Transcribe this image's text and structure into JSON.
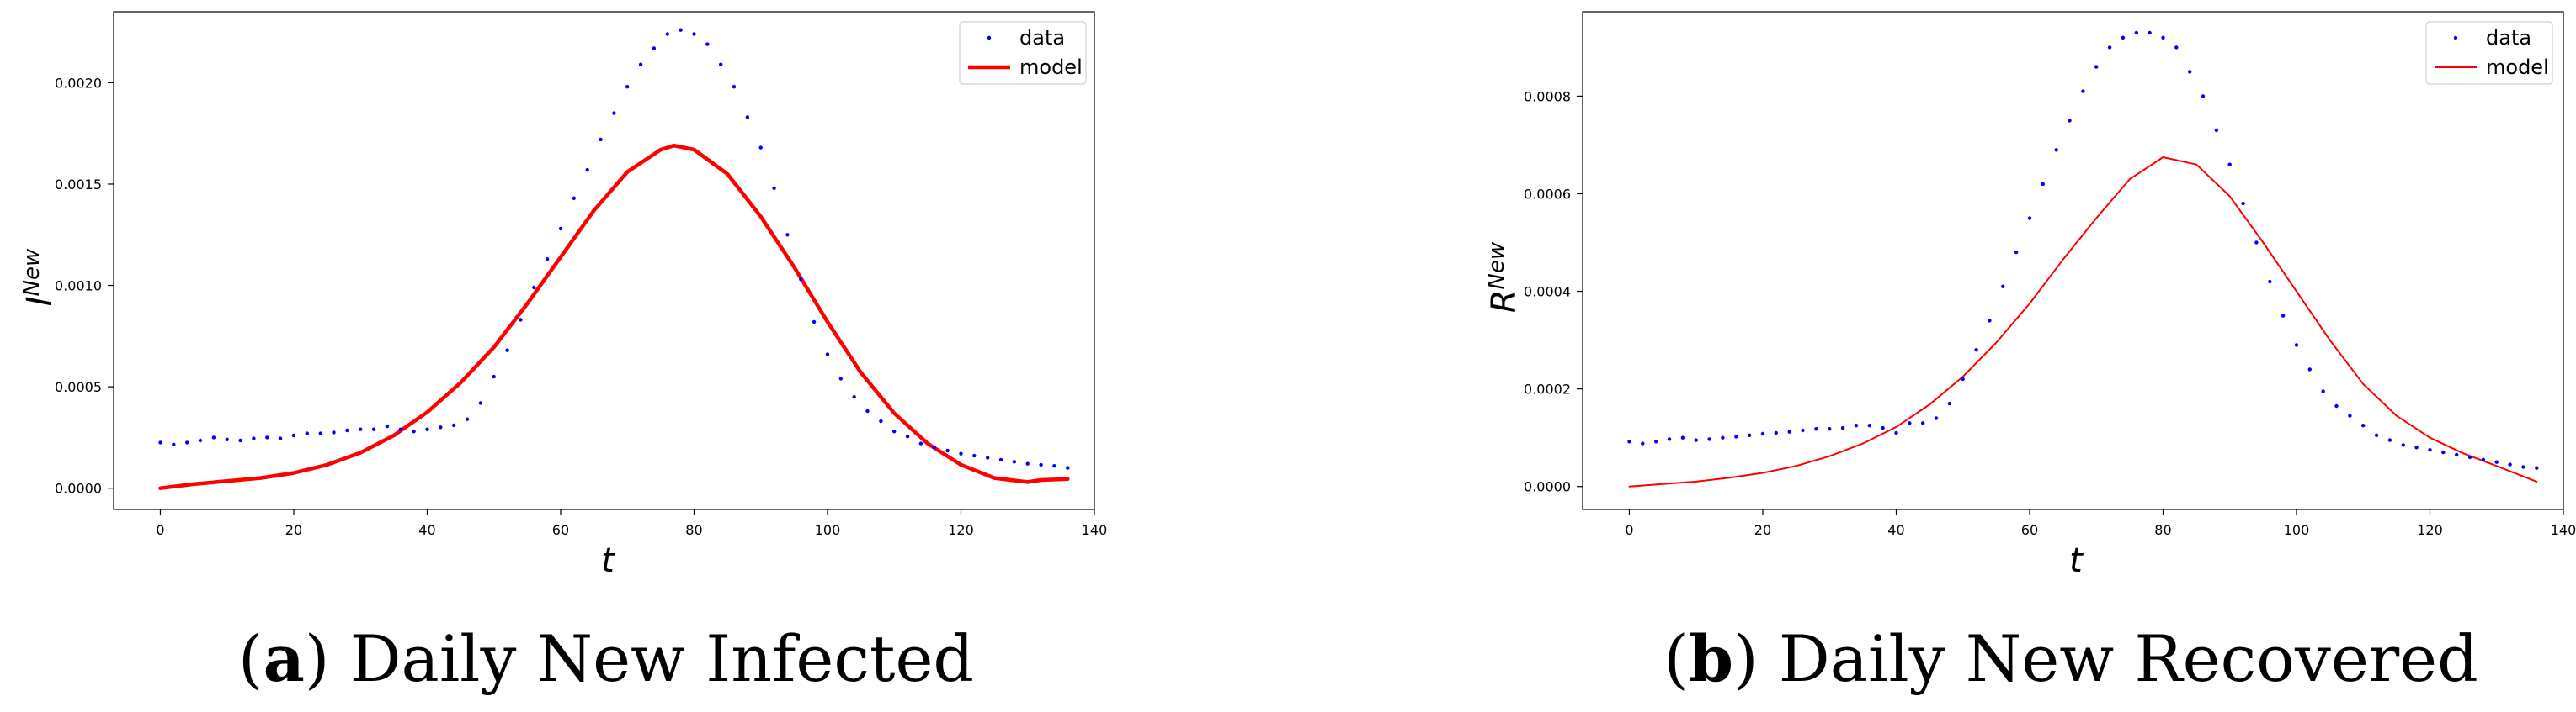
{
  "chart_data": [
    {
      "type": "scatter",
      "panel_letter": "a",
      "caption": "Daily New Infected",
      "xlabel": "t",
      "ylabel_base": "I",
      "ylabel_sup": "New",
      "xlim": [
        -7,
        140
      ],
      "ylim": [
        -0.000105,
        0.00235
      ],
      "x_ticks": [
        0,
        20,
        40,
        60,
        80,
        100,
        120,
        140
      ],
      "y_ticks": [
        0.0,
        0.0005,
        0.001,
        0.0015,
        0.002
      ],
      "y_tick_labels": [
        "0.0000",
        "0.0005",
        "0.0010",
        "0.0015",
        "0.0020"
      ],
      "legend": {
        "position": "upper-right",
        "entries": [
          "data",
          "model"
        ]
      },
      "grid": false,
      "series": [
        {
          "name": "data",
          "kind": "dots",
          "color": "#0000ff",
          "x": [
            0,
            2,
            4,
            6,
            8,
            10,
            12,
            14,
            16,
            18,
            20,
            22,
            24,
            26,
            28,
            30,
            32,
            34,
            36,
            38,
            40,
            42,
            44,
            46,
            48,
            50,
            52,
            54,
            56,
            58,
            60,
            62,
            64,
            66,
            68,
            70,
            72,
            74,
            76,
            78,
            80,
            82,
            84,
            86,
            88,
            90,
            92,
            94,
            96,
            98,
            100,
            102,
            104,
            106,
            108,
            110,
            112,
            114,
            116,
            118,
            120,
            122,
            124,
            126,
            128,
            130,
            132,
            134,
            136
          ],
          "y": [
            0.000225,
            0.000215,
            0.000225,
            0.000235,
            0.00025,
            0.00024,
            0.000235,
            0.000245,
            0.00025,
            0.000245,
            0.00026,
            0.00027,
            0.00027,
            0.000275,
            0.000285,
            0.00029,
            0.00029,
            0.000305,
            0.00029,
            0.00028,
            0.00029,
            0.0003,
            0.00031,
            0.00034,
            0.00042,
            0.00055,
            0.00068,
            0.00083,
            0.00099,
            0.00113,
            0.00128,
            0.00143,
            0.00157,
            0.00172,
            0.00185,
            0.00198,
            0.00209,
            0.00217,
            0.00224,
            0.00226,
            0.00224,
            0.00219,
            0.00209,
            0.00198,
            0.00183,
            0.00168,
            0.00148,
            0.00125,
            0.00103,
            0.00082,
            0.00066,
            0.00054,
            0.00045,
            0.00038,
            0.00033,
            0.00028,
            0.000255,
            0.00022,
            0.0002,
            0.000185,
            0.00017,
            0.00016,
            0.00015,
            0.00014,
            0.00013,
            0.00012,
            0.000115,
            0.00011,
            0.0001
          ]
        },
        {
          "name": "model",
          "kind": "line",
          "color": "#ff0000",
          "x": [
            0,
            5,
            10,
            15,
            20,
            25,
            30,
            35,
            40,
            45,
            50,
            55,
            60,
            65,
            70,
            75,
            77,
            80,
            85,
            90,
            95,
            100,
            105,
            110,
            115,
            120,
            125,
            130,
            132,
            136
          ],
          "y": [
            0.0,
            2e-05,
            3.5e-05,
            5e-05,
            7.5e-05,
            0.000115,
            0.000175,
            0.00026,
            0.000375,
            0.00052,
            0.000695,
            0.00091,
            0.00114,
            0.00137,
            0.00156,
            0.00167,
            0.00169,
            0.00167,
            0.00155,
            0.00134,
            0.00109,
            0.00082,
            0.00057,
            0.00037,
            0.00022,
            0.000115,
            5e-05,
            3e-05,
            4e-05,
            4.5e-05
          ]
        }
      ]
    },
    {
      "type": "scatter",
      "panel_letter": "b",
      "caption": "Daily New Recovered",
      "xlabel": "t",
      "ylabel_base": "R",
      "ylabel_sup": "New",
      "xlim": [
        -7,
        140
      ],
      "ylim": [
        -4.7e-05,
        0.000973
      ],
      "x_ticks": [
        0,
        20,
        40,
        60,
        80,
        100,
        120,
        140
      ],
      "y_ticks": [
        0.0,
        0.0002,
        0.0004,
        0.0006,
        0.0008
      ],
      "y_tick_labels": [
        "0.0000",
        "0.0002",
        "0.0004",
        "0.0006",
        "0.0008"
      ],
      "legend": {
        "position": "upper-right",
        "entries": [
          "data",
          "model"
        ]
      },
      "grid": false,
      "series": [
        {
          "name": "data",
          "kind": "dots",
          "color": "#0000ff",
          "x": [
            0,
            2,
            4,
            6,
            8,
            10,
            12,
            14,
            16,
            18,
            20,
            22,
            24,
            26,
            28,
            30,
            32,
            34,
            36,
            38,
            40,
            42,
            44,
            46,
            48,
            50,
            52,
            54,
            56,
            58,
            60,
            62,
            64,
            66,
            68,
            70,
            72,
            74,
            76,
            78,
            80,
            82,
            84,
            86,
            88,
            90,
            92,
            94,
            96,
            98,
            100,
            102,
            104,
            106,
            108,
            110,
            112,
            114,
            116,
            118,
            120,
            122,
            124,
            126,
            128,
            130,
            132,
            134,
            136
          ],
          "y": [
            9.2e-05,
            8.8e-05,
            9.2e-05,
            9.7e-05,
            0.0001,
            9.5e-05,
            9.7e-05,
            0.0001,
            0.000102,
            0.000105,
            0.000108,
            0.00011,
            0.000112,
            0.000115,
            0.000118,
            0.000118,
            0.00012,
            0.000125,
            0.000125,
            0.00012,
            0.00011,
            0.00013,
            0.00013,
            0.00014,
            0.00017,
            0.00022,
            0.00028,
            0.00034,
            0.00041,
            0.00048,
            0.00055,
            0.00062,
            0.00069,
            0.00075,
            0.00081,
            0.00086,
            0.0009,
            0.00092,
            0.00093,
            0.00093,
            0.00092,
            0.0009,
            0.00085,
            0.0008,
            0.00073,
            0.00066,
            0.00058,
            0.0005,
            0.00042,
            0.00035,
            0.00029,
            0.00024,
            0.000195,
            0.000165,
            0.000145,
            0.000125,
            0.000105,
            9.5e-05,
            8.5e-05,
            8e-05,
            7.5e-05,
            7e-05,
            6.5e-05,
            6e-05,
            5.5e-05,
            5e-05,
            4.5e-05,
            4e-05,
            3.8e-05
          ]
        },
        {
          "name": "model",
          "kind": "line",
          "color": "#ff0000",
          "x": [
            0,
            5,
            10,
            15,
            20,
            25,
            30,
            35,
            40,
            45,
            50,
            55,
            60,
            65,
            70,
            75,
            80,
            85,
            90,
            95,
            100,
            105,
            110,
            115,
            120,
            125,
            130,
            136
          ],
          "y": [
            0.0,
            5e-06,
            1e-05,
            1.8e-05,
            2.8e-05,
            4.2e-05,
            6.2e-05,
            8.8e-05,
            0.000122,
            0.000168,
            0.000225,
            0.000295,
            0.000375,
            0.000465,
            0.00055,
            0.00063,
            0.000675,
            0.00066,
            0.000595,
            0.0005,
            0.0004,
            0.0003,
            0.00021,
            0.000145,
            0.0001,
            6.8e-05,
            4.2e-05,
            1e-05
          ]
        }
      ]
    }
  ]
}
